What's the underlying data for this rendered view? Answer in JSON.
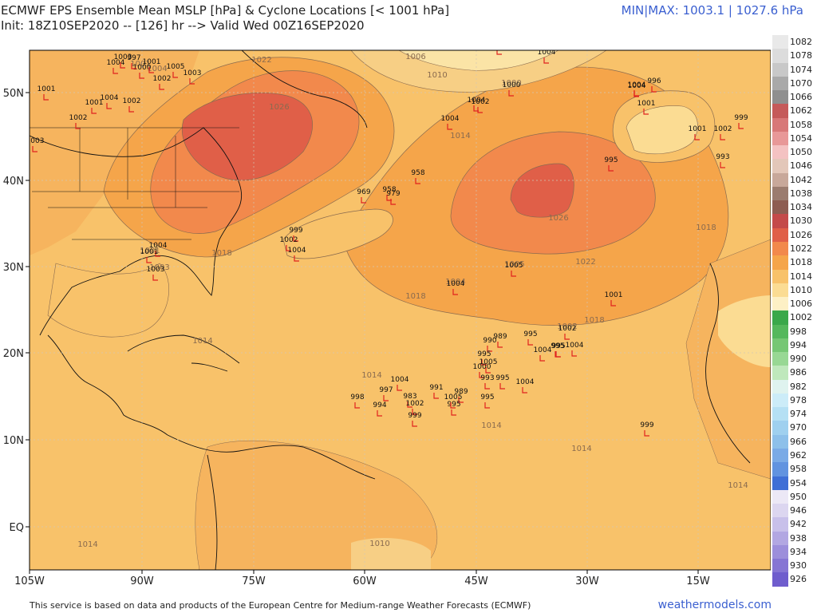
{
  "header": {
    "title": "ECMWF EPS Ensemble Mean MSLP [hPa] & Cyclone Locations [< 1001 hPa]",
    "init_line": "Init: 18Z10SEP2020 -- [126] hr --> Valid Wed 00Z16SEP2020",
    "minmax": "MIN|MAX: 1003.1 | 1027.6 hPa"
  },
  "footer": {
    "credit": "This service is based on data and products of the European Centre for Medium-range Weather Forecasts (ECMWF)",
    "site": "weathermodels.com"
  },
  "map": {
    "lon_ticks": [
      "105W",
      "90W",
      "75W",
      "60W",
      "45W",
      "30W",
      "15W"
    ],
    "lat_ticks": [
      "50N",
      "40N",
      "30N",
      "20N",
      "10N",
      "EQ"
    ],
    "colors": {
      "ocean_1014": "#f8c26a",
      "land_1014": "#f6b45e",
      "band_1018": "#f5a54a",
      "band_1022": "#f2894c",
      "core_1026": "#e05f48",
      "band_1010": "#f7cf85",
      "band_1006": "#fbe4a6",
      "contour": "#8a6b4f",
      "low_marker": "#e0221f"
    },
    "contour_labels": [
      "1022",
      "1026",
      "1010",
      "1006",
      "1001",
      "1004",
      "1000",
      "1014",
      "1018",
      "1003",
      "1005",
      "1001",
      "1018",
      "1014",
      "1004",
      "1002",
      "1018",
      "1010",
      "1014",
      "1022",
      "1026",
      "1014",
      "1018",
      "1014",
      "1014",
      "1014"
    ],
    "lows": [
      {
        "label": "1001"
      },
      {
        "label": "1004"
      },
      {
        "label": "1000"
      },
      {
        "label": "996"
      },
      {
        "label": "1004"
      },
      {
        "label": "1004"
      },
      {
        "label": "1002"
      },
      {
        "label": "1004"
      },
      {
        "label": "958"
      },
      {
        "label": "969"
      },
      {
        "label": "958"
      },
      {
        "label": "979"
      },
      {
        "label": "999"
      },
      {
        "label": "1002"
      },
      {
        "label": "1004"
      },
      {
        "label": "1004"
      },
      {
        "label": "1001"
      },
      {
        "label": "1003"
      },
      {
        "label": "1005"
      },
      {
        "label": "1004"
      },
      {
        "label": "1001"
      },
      {
        "label": "990"
      },
      {
        "label": "989"
      },
      {
        "label": "995"
      },
      {
        "label": "995"
      },
      {
        "label": "1005"
      },
      {
        "label": "1000"
      },
      {
        "label": "993"
      },
      {
        "label": "995"
      },
      {
        "label": "1004"
      },
      {
        "label": "995"
      },
      {
        "label": "995"
      },
      {
        "label": "1002"
      },
      {
        "label": "1004"
      },
      {
        "label": "995"
      },
      {
        "label": "1004"
      },
      {
        "label": "1004"
      },
      {
        "label": "997"
      },
      {
        "label": "991"
      },
      {
        "label": "989"
      },
      {
        "label": "995"
      },
      {
        "label": "983"
      },
      {
        "label": "1002"
      },
      {
        "label": "999"
      },
      {
        "label": "1005"
      },
      {
        "label": "994"
      },
      {
        "label": "998"
      },
      {
        "label": "999"
      },
      {
        "label": "1001"
      },
      {
        "label": "1002"
      },
      {
        "label": "993"
      },
      {
        "label": "999"
      },
      {
        "label": "995"
      },
      {
        "label": "1004"
      },
      {
        "label": "1001"
      },
      {
        "label": "1002"
      },
      {
        "label": "1003"
      },
      {
        "label": "1001"
      },
      {
        "label": "1000"
      },
      {
        "label": "1004"
      },
      {
        "label": "1005"
      },
      {
        "label": "1003"
      },
      {
        "label": "1002"
      },
      {
        "label": "1001"
      },
      {
        "label": "1004"
      },
      {
        "label": "1002"
      },
      {
        "label": "1001"
      },
      {
        "label": "997"
      },
      {
        "label": "1003"
      }
    ]
  },
  "legend": [
    {
      "value": "1082",
      "color": "#e9e9e9"
    },
    {
      "value": "1078",
      "color": "#dcdcdc"
    },
    {
      "value": "1074",
      "color": "#c8c8c8"
    },
    {
      "value": "1070",
      "color": "#a9a9a9"
    },
    {
      "value": "1066",
      "color": "#8f8f8f"
    },
    {
      "value": "1062",
      "color": "#c55a5a"
    },
    {
      "value": "1058",
      "color": "#d87878"
    },
    {
      "value": "1054",
      "color": "#e89898"
    },
    {
      "value": "1050",
      "color": "#f4c2c2"
    },
    {
      "value": "1046",
      "color": "#e3c7b9"
    },
    {
      "value": "1042",
      "color": "#c8a89a"
    },
    {
      "value": "1038",
      "color": "#9b7c6f"
    },
    {
      "value": "1034",
      "color": "#8e5d52"
    },
    {
      "value": "1030",
      "color": "#c44a4a"
    },
    {
      "value": "1026",
      "color": "#e05f48"
    },
    {
      "value": "1022",
      "color": "#f2894c"
    },
    {
      "value": "1018",
      "color": "#f5a54a"
    },
    {
      "value": "1014",
      "color": "#f8c26a"
    },
    {
      "value": "1010",
      "color": "#fbdc93"
    },
    {
      "value": "1006",
      "color": "#fdf0c5"
    },
    {
      "value": "1002",
      "color": "#3aa84a"
    },
    {
      "value": "998",
      "color": "#55b85c"
    },
    {
      "value": "994",
      "color": "#76c774"
    },
    {
      "value": "990",
      "color": "#98d894"
    },
    {
      "value": "986",
      "color": "#bfe8bc"
    },
    {
      "value": "982",
      "color": "#dff3ef"
    },
    {
      "value": "978",
      "color": "#ccecf8"
    },
    {
      "value": "974",
      "color": "#b5e0f4"
    },
    {
      "value": "970",
      "color": "#9fd0ef"
    },
    {
      "value": "966",
      "color": "#8dc0ea"
    },
    {
      "value": "962",
      "color": "#7aaae6"
    },
    {
      "value": "958",
      "color": "#6193e0"
    },
    {
      "value": "954",
      "color": "#3f6fd6"
    },
    {
      "value": "950",
      "color": "#ece8f6"
    },
    {
      "value": "946",
      "color": "#dcd6f0"
    },
    {
      "value": "942",
      "color": "#c8c0ea"
    },
    {
      "value": "938",
      "color": "#b2a7e2"
    },
    {
      "value": "934",
      "color": "#9c8edb"
    },
    {
      "value": "930",
      "color": "#8675d4"
    },
    {
      "value": "926",
      "color": "#6f5dcd"
    }
  ]
}
